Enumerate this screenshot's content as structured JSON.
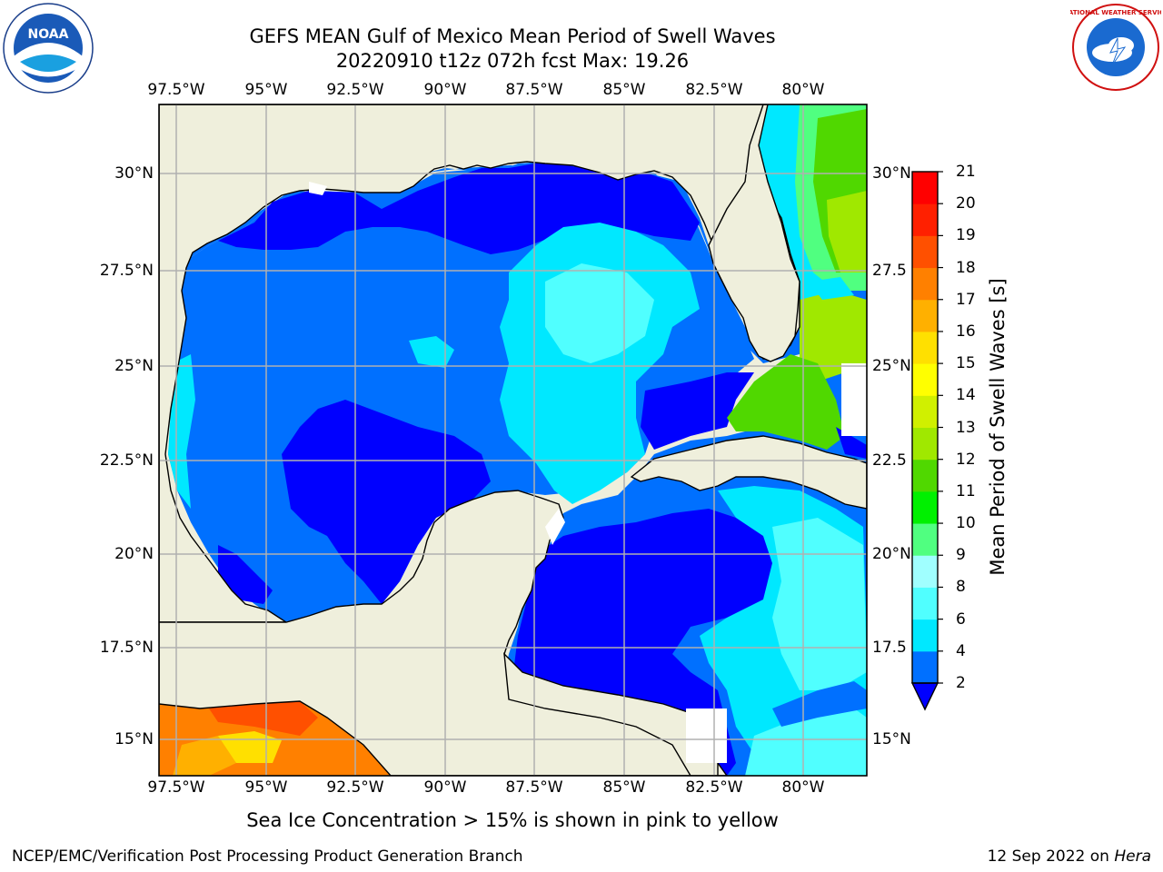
{
  "title": {
    "line1": "GEFS MEAN Gulf of Mexico Mean Period of Swell Waves",
    "line2": "20220910 t12z 072h fcst   Max: 19.26"
  },
  "map": {
    "lon_labels": [
      "97.5°W",
      "95°W",
      "92.5°W",
      "90°W",
      "87.5°W",
      "85°W",
      "82.5°W",
      "80°W"
    ],
    "lat_labels_left": [
      "30°N",
      "27.5°N",
      "25°N",
      "22.5°N",
      "20°N",
      "17.5°N",
      "15°N"
    ],
    "lat_labels_right": [
      "30°N",
      "27.5",
      "25°N",
      "22.5",
      "20°N",
      "17.5",
      "15°N"
    ],
    "colors": {
      "land": "#efefdc",
      "grid": "#b0b0b0",
      "coast": "#000000"
    }
  },
  "colorbar": {
    "title": "Mean Period of Swell Waves [s]",
    "tick_labels": [
      "2",
      "4",
      "6",
      "8",
      "9",
      "10",
      "11",
      "12",
      "13",
      "14",
      "15",
      "16",
      "17",
      "18",
      "19",
      "20",
      "21"
    ],
    "colors": [
      "#0000ff",
      "#0070ff",
      "#00e8ff",
      "#50ffff",
      "#a0ffff",
      "#50ff80",
      "#00f000",
      "#50d800",
      "#a0e800",
      "#d0f000",
      "#ffff00",
      "#ffe000",
      "#ffb000",
      "#ff8000",
      "#ff5000",
      "#ff2000",
      "#ff0000"
    ]
  },
  "caption": "Sea Ice Concentration > 15% is shown in pink to yellow",
  "footer": {
    "credit": "NCEP/EMC/Verification Post Processing Product Generation Branch",
    "date_prefix": "12 Sep 2022 on",
    "date_machine": "Hera"
  },
  "logos": {
    "noaa_text": "NOAA",
    "nws_text": "NATIONAL WEATHER SERVICE"
  }
}
